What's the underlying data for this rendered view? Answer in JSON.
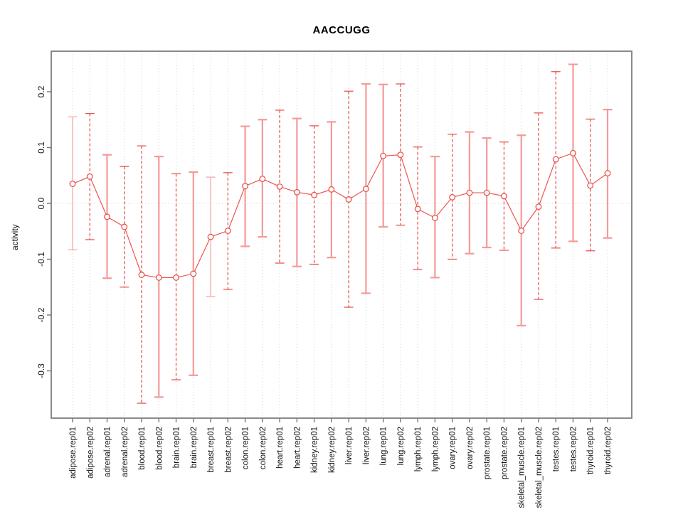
{
  "title": "AACCUGG",
  "chart_data": {
    "type": "line",
    "subtype": "points-with-error-bars",
    "title": "AACCUGG",
    "xlabel": "",
    "ylabel": "activity",
    "ylim": [
      -0.385,
      0.273
    ],
    "yticks": [
      {
        "value": 0.2,
        "label": "0.2"
      },
      {
        "value": 0.1,
        "label": "0.1"
      },
      {
        "value": 0.0,
        "label": "0.0"
      },
      {
        "value": -0.1,
        "label": "-0.1"
      },
      {
        "value": -0.2,
        "label": "-0.2"
      },
      {
        "value": -0.3,
        "label": "-0.3"
      }
    ],
    "grid": "vertical-dotted-at-each-category-plus-dotted-zero-line",
    "legend_position": "none",
    "points": [
      {
        "label": "adipose.rep01",
        "value": 0.035,
        "lower": -0.083,
        "upper": 0.155,
        "bar": "solid-thin"
      },
      {
        "label": "adipose.rep02",
        "value": 0.048,
        "lower": -0.065,
        "upper": 0.161,
        "bar": "dashed"
      },
      {
        "label": "adrenal.rep01",
        "value": -0.024,
        "lower": -0.134,
        "upper": 0.087,
        "bar": "solid"
      },
      {
        "label": "adrenal.rep02",
        "value": -0.042,
        "lower": -0.15,
        "upper": 0.066,
        "bar": "dashed"
      },
      {
        "label": "blood.rep01",
        "value": -0.128,
        "lower": -0.358,
        "upper": 0.103,
        "bar": "dashed"
      },
      {
        "label": "blood.rep02",
        "value": -0.133,
        "lower": -0.347,
        "upper": 0.084,
        "bar": "solid"
      },
      {
        "label": "brain.rep01",
        "value": -0.133,
        "lower": -0.316,
        "upper": 0.053,
        "bar": "dashed"
      },
      {
        "label": "brain.rep02",
        "value": -0.126,
        "lower": -0.308,
        "upper": 0.056,
        "bar": "solid"
      },
      {
        "label": "breast.rep01",
        "value": -0.06,
        "lower": -0.167,
        "upper": 0.047,
        "bar": "solid-thin"
      },
      {
        "label": "breast.rep02",
        "value": -0.049,
        "lower": -0.154,
        "upper": 0.055,
        "bar": "dashed"
      },
      {
        "label": "colon.rep01",
        "value": 0.031,
        "lower": -0.077,
        "upper": 0.138,
        "bar": "solid"
      },
      {
        "label": "colon.rep02",
        "value": 0.044,
        "lower": -0.06,
        "upper": 0.15,
        "bar": "solid"
      },
      {
        "label": "heart.rep01",
        "value": 0.03,
        "lower": -0.107,
        "upper": 0.167,
        "bar": "dashed"
      },
      {
        "label": "heart.rep02",
        "value": 0.02,
        "lower": -0.113,
        "upper": 0.152,
        "bar": "solid"
      },
      {
        "label": "kidney.rep01",
        "value": 0.015,
        "lower": -0.109,
        "upper": 0.139,
        "bar": "dashed"
      },
      {
        "label": "kidney.rep02",
        "value": 0.025,
        "lower": -0.097,
        "upper": 0.146,
        "bar": "solid"
      },
      {
        "label": "liver.rep01",
        "value": 0.007,
        "lower": -0.186,
        "upper": 0.201,
        "bar": "dashed"
      },
      {
        "label": "liver.rep02",
        "value": 0.026,
        "lower": -0.161,
        "upper": 0.214,
        "bar": "solid"
      },
      {
        "label": "lung.rep01",
        "value": 0.085,
        "lower": -0.042,
        "upper": 0.213,
        "bar": "solid"
      },
      {
        "label": "lung.rep02",
        "value": 0.087,
        "lower": -0.039,
        "upper": 0.214,
        "bar": "dashed"
      },
      {
        "label": "lymph.rep01",
        "value": -0.01,
        "lower": -0.118,
        "upper": 0.101,
        "bar": "dashed"
      },
      {
        "label": "lymph.rep02",
        "value": -0.026,
        "lower": -0.133,
        "upper": 0.084,
        "bar": "solid"
      },
      {
        "label": "ovary.rep01",
        "value": 0.011,
        "lower": -0.1,
        "upper": 0.124,
        "bar": "dashed"
      },
      {
        "label": "ovary.rep02",
        "value": 0.019,
        "lower": -0.09,
        "upper": 0.128,
        "bar": "solid"
      },
      {
        "label": "prostate.rep01",
        "value": 0.019,
        "lower": -0.079,
        "upper": 0.117,
        "bar": "solid"
      },
      {
        "label": "prostate.rep02",
        "value": 0.013,
        "lower": -0.084,
        "upper": 0.11,
        "bar": "dashed"
      },
      {
        "label": "skeletal_muscle.rep01",
        "value": -0.049,
        "lower": -0.219,
        "upper": 0.122,
        "bar": "solid"
      },
      {
        "label": "skeletal_muscle.rep02",
        "value": -0.006,
        "lower": -0.172,
        "upper": 0.162,
        "bar": "dashed"
      },
      {
        "label": "testes.rep01",
        "value": 0.079,
        "lower": -0.08,
        "upper": 0.236,
        "bar": "dashed"
      },
      {
        "label": "testes.rep02",
        "value": 0.09,
        "lower": -0.068,
        "upper": 0.249,
        "bar": "solid"
      },
      {
        "label": "thyroid.rep01",
        "value": 0.032,
        "lower": -0.085,
        "upper": 0.151,
        "bar": "dashed"
      },
      {
        "label": "thyroid.rep02",
        "value": 0.054,
        "lower": -0.062,
        "upper": 0.168,
        "bar": "solid"
      }
    ],
    "colors": {
      "bar_dashed": "#e8564e",
      "bar_solid": "#f59a97",
      "bar_solid_thin": "#f6a8a5",
      "series_line": "#ef534e",
      "marker": "#e8544c",
      "grid": "#d4d4d4",
      "zero_line": "#d4d4d4",
      "frame": "#7d7d7d",
      "tick": "#777777",
      "text": "#111111"
    }
  }
}
